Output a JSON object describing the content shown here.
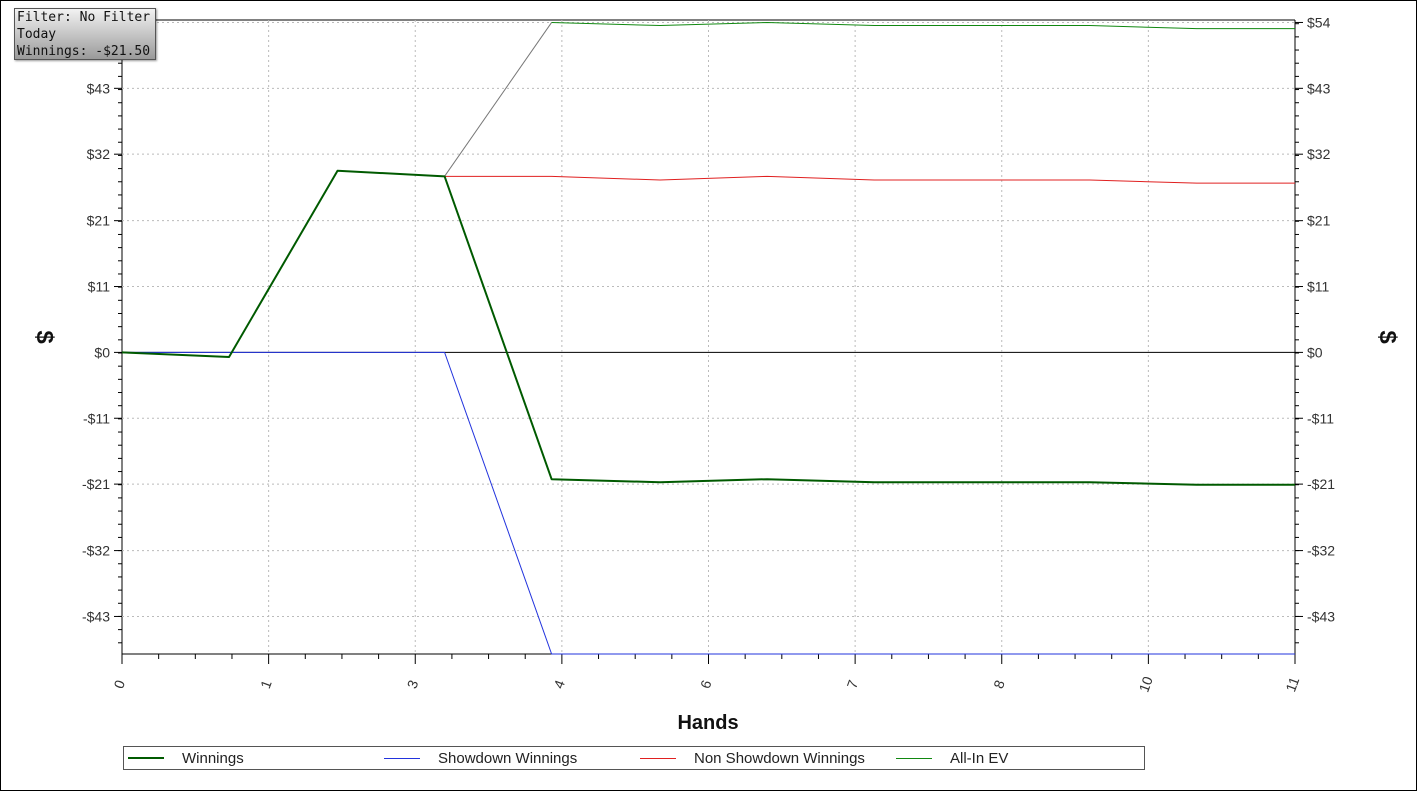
{
  "info_box": {
    "filter": "Filter: No Filter",
    "period": "Today",
    "winnings": "Winnings: -$21.50"
  },
  "chart_data": {
    "type": "line",
    "xlabel": "Hands",
    "ylabel": "$",
    "ylabel_right": "$",
    "x_tick_labels": [
      "0",
      "1",
      "3",
      "4",
      "6",
      "7",
      "8",
      "10",
      "11"
    ],
    "x_range": [
      0,
      8
    ],
    "y_range": [
      -49,
      54
    ],
    "y_tick_labels": [
      "$54",
      "$43",
      "$32",
      "$21",
      "$11",
      "$0",
      "-$11",
      "-$21",
      "-$32",
      "-$43"
    ],
    "y_tick_values": [
      53.6,
      42.9,
      32.2,
      21.4,
      10.7,
      0,
      -10.7,
      -21.4,
      -32.2,
      -42.9
    ],
    "grid": true,
    "legend_position": "bottom",
    "series": [
      {
        "name": "Winnings",
        "color": "#005a00",
        "width": 2,
        "x": [
          0,
          0.73,
          1.47,
          2.2,
          2.93,
          3.67,
          4.4,
          5.13,
          5.87,
          6.6,
          7.33,
          8
        ],
        "y": [
          0,
          -0.75,
          29.5,
          28.6,
          -20.6,
          -21.1,
          -20.6,
          -21.1,
          -21.1,
          -21.1,
          -21.5,
          -21.5
        ]
      },
      {
        "name": "Showdown Winnings",
        "color": "#2233dd",
        "width": 1,
        "x": [
          0,
          0.73,
          1.47,
          2.2,
          2.93,
          3.67,
          4.4,
          5.13,
          5.87,
          6.6,
          7.33,
          8
        ],
        "y": [
          0,
          0,
          0,
          0,
          -49,
          -49,
          -49,
          -49,
          -49,
          -49,
          -49,
          -49
        ]
      },
      {
        "name": "Non Showdown Winnings",
        "color": "#e02020",
        "width": 1,
        "x": [
          2.2,
          2.93,
          3.67,
          4.4,
          5.13,
          5.87,
          6.6,
          7.33,
          8
        ],
        "y": [
          28.6,
          28.6,
          28.0,
          28.6,
          28.0,
          28.0,
          28.0,
          27.5,
          27.5
        ]
      },
      {
        "name": "All-In EV",
        "color": "#118811",
        "width": 1,
        "x": [
          2.93,
          3.67,
          4.4,
          5.13,
          5.87,
          6.6,
          7.33,
          8
        ],
        "y": [
          53.6,
          53.1,
          53.6,
          53.1,
          53.1,
          53.1,
          52.6,
          52.6
        ]
      }
    ],
    "connector": {
      "color": "#777777",
      "x": [
        2.2,
        2.93
      ],
      "y": [
        28.6,
        53.6
      ]
    }
  }
}
